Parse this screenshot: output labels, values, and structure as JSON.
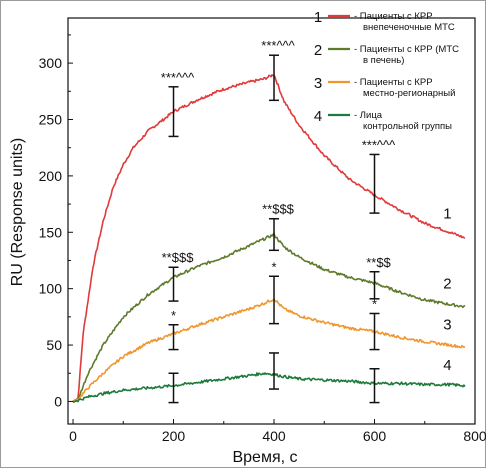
{
  "chart_data": {
    "type": "line",
    "xlabel": "Время, с",
    "ylabel": "RU (Response units)",
    "xlim": [
      -10,
      800
    ],
    "ylim": [
      -20,
      340
    ],
    "xticks": [
      "0",
      "200",
      "400",
      "600",
      "800"
    ],
    "yticks": [
      "0",
      "50",
      "100",
      "150",
      "200",
      "250",
      "300"
    ],
    "grid": false,
    "legend_position": "top-right",
    "series": [
      {
        "id": "1",
        "name": "- Пациенты с КРР внепеченочные МТС",
        "color": "#e03a3a",
        "x": [
          0,
          10,
          20,
          40,
          60,
          80,
          100,
          120,
          150,
          180,
          200,
          250,
          300,
          350,
          380,
          400,
          420,
          450,
          500,
          550,
          600,
          650,
          700,
          750,
          780
        ],
        "y": [
          0,
          3,
          60,
          120,
          160,
          190,
          210,
          225,
          240,
          250,
          257,
          268,
          277,
          283,
          286,
          290,
          266,
          245,
          218,
          197,
          183,
          170,
          158,
          150,
          145
        ],
        "errorbars": [
          {
            "x": 200,
            "y": 257,
            "err": 22
          },
          {
            "x": 400,
            "y": 287,
            "err": 20
          },
          {
            "x": 600,
            "y": 193,
            "err": 26
          }
        ],
        "annotations": [
          {
            "x": 200,
            "text": "***^^^"
          },
          {
            "x": 400,
            "text": "***^^^"
          },
          {
            "x": 600,
            "text": "***^^^"
          }
        ],
        "label_x": 745,
        "label_y": 162
      },
      {
        "id": "2",
        "name": "- Пациенты с КРР (МТС в печень)",
        "color": "#5e7a2c",
        "x": [
          0,
          10,
          30,
          60,
          100,
          150,
          200,
          250,
          300,
          350,
          380,
          400,
          420,
          450,
          500,
          550,
          600,
          650,
          700,
          750,
          780
        ],
        "y": [
          0,
          2,
          25,
          50,
          75,
          95,
          110,
          120,
          128,
          138,
          144,
          148,
          137,
          128,
          117,
          110,
          105,
          97,
          90,
          86,
          84
        ],
        "errorbars": [
          {
            "x": 200,
            "y": 104,
            "err": 15
          },
          {
            "x": 400,
            "y": 148,
            "err": 14
          },
          {
            "x": 600,
            "y": 103,
            "err": 12
          }
        ],
        "annotations": [
          {
            "x": 200,
            "text": "**$$$"
          },
          {
            "x": 400,
            "text": "**$$$"
          },
          {
            "x": 600,
            "text": "**$$"
          }
        ],
        "label_x": 745,
        "label_y": 100
      },
      {
        "id": "3",
        "name": "- Пациенты с КРР местно-регионарный",
        "color": "#f0962e",
        "x": [
          0,
          10,
          30,
          60,
          100,
          150,
          200,
          250,
          300,
          350,
          380,
          400,
          420,
          450,
          500,
          550,
          600,
          650,
          700,
          750,
          780
        ],
        "y": [
          0,
          2,
          12,
          25,
          40,
          52,
          60,
          68,
          75,
          82,
          87,
          91,
          82,
          76,
          70,
          65,
          62,
          57,
          53,
          50,
          48
        ],
        "errorbars": [
          {
            "x": 200,
            "y": 57,
            "err": 11
          },
          {
            "x": 400,
            "y": 90,
            "err": 21
          },
          {
            "x": 600,
            "y": 62,
            "err": 16
          }
        ],
        "annotations": [
          {
            "x": 200,
            "text": "*"
          },
          {
            "x": 400,
            "text": "*"
          },
          {
            "x": 600,
            "text": "*"
          }
        ],
        "label_x": 745,
        "label_y": 64
      },
      {
        "id": "4",
        "name": "- Лица контрольной группы",
        "color": "#1d7a3a",
        "x": [
          0,
          10,
          30,
          60,
          100,
          150,
          200,
          250,
          300,
          350,
          380,
          400,
          420,
          450,
          500,
          550,
          600,
          650,
          700,
          750,
          780
        ],
        "y": [
          0,
          1,
          4,
          7,
          10,
          12,
          14,
          17,
          20,
          23,
          25,
          24,
          22,
          20,
          19,
          18,
          16,
          16,
          15,
          15,
          14
        ],
        "errorbars": [
          {
            "x": 200,
            "y": 12,
            "err": 13
          },
          {
            "x": 400,
            "y": 27,
            "err": 16
          },
          {
            "x": 600,
            "y": 14,
            "err": 15
          }
        ],
        "annotations": [],
        "label_x": 745,
        "label_y": 28
      }
    ]
  }
}
